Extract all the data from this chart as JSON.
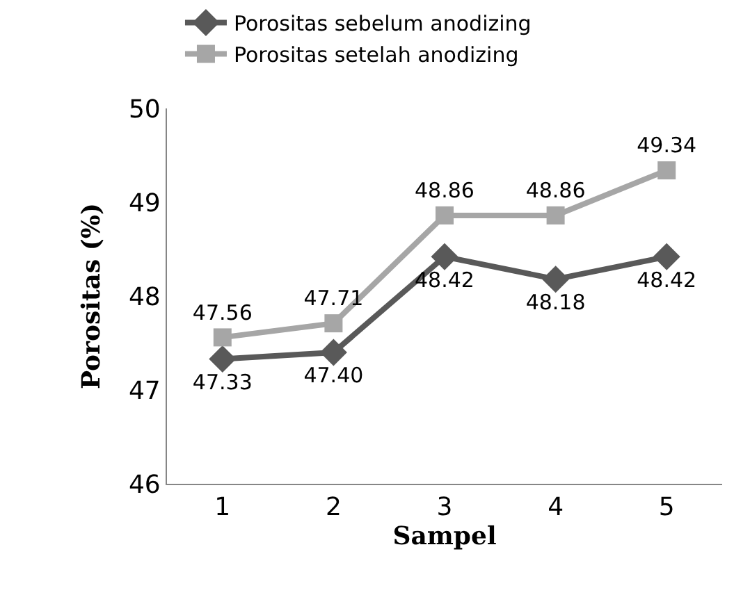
{
  "chart_data": {
    "type": "line",
    "xlabel": "Sampel",
    "ylabel": "Porositas (%)",
    "categories": [
      "1",
      "2",
      "3",
      "4",
      "5"
    ],
    "series": [
      {
        "name": "Porositas sebelum anodizing",
        "color": "#595959",
        "marker": "diamond",
        "values": [
          47.33,
          47.4,
          48.42,
          48.18,
          48.42
        ],
        "value_labels": [
          "47.33",
          "47.40",
          "48.42",
          "48.18",
          "48.42"
        ]
      },
      {
        "name": "Porositas setelah anodizing",
        "color": "#a6a6a6",
        "marker": "square",
        "values": [
          47.56,
          47.71,
          48.86,
          48.86,
          49.34
        ],
        "value_labels": [
          "47.56",
          "47.71",
          "48.86",
          "48.86",
          "49.34"
        ]
      }
    ],
    "ylim": [
      46,
      50
    ],
    "yticks": [
      46,
      47,
      48,
      49,
      50
    ],
    "legend": "top",
    "line_style": "solid"
  }
}
